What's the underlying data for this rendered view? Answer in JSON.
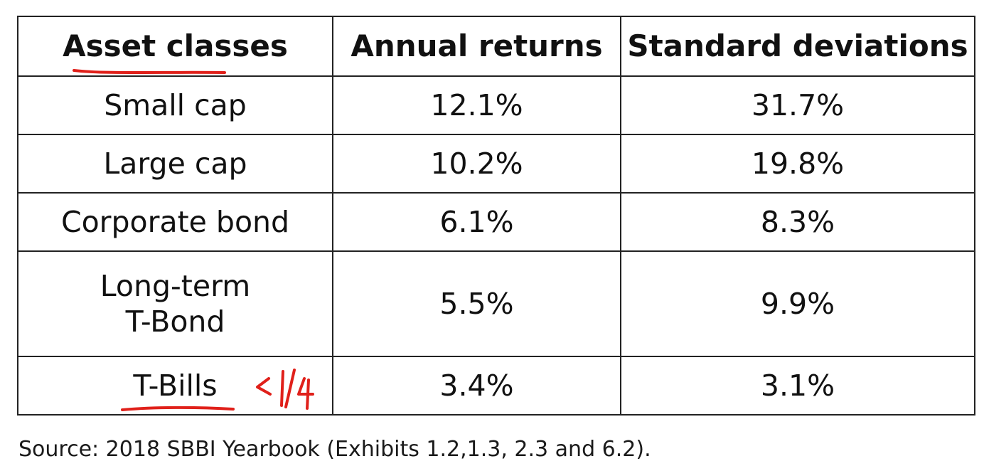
{
  "table": {
    "headers": [
      "Asset classes",
      "Annual returns",
      "Standard deviations"
    ],
    "rows": [
      {
        "asset": [
          "Small cap"
        ],
        "annual_return": "12.1%",
        "std_dev": "31.7%"
      },
      {
        "asset": [
          "Large cap"
        ],
        "annual_return": "10.2%",
        "std_dev": "19.8%"
      },
      {
        "asset": [
          "Corporate bond"
        ],
        "annual_return": "6.1%",
        "std_dev": "8.3%"
      },
      {
        "asset": [
          "Long-term",
          "T-Bond"
        ],
        "annual_return": "5.5%",
        "std_dev": "9.9%"
      },
      {
        "asset": [
          "T-Bills"
        ],
        "annual_return": "3.4%",
        "std_dev": "3.1%"
      }
    ]
  },
  "annotation": {
    "handwritten": "< 1/4",
    "color": "#e0201a"
  },
  "source": "Source: 2018 SBBI Yearbook (Exhibits 1.2,1.3, 2.3 and 6.2)."
}
